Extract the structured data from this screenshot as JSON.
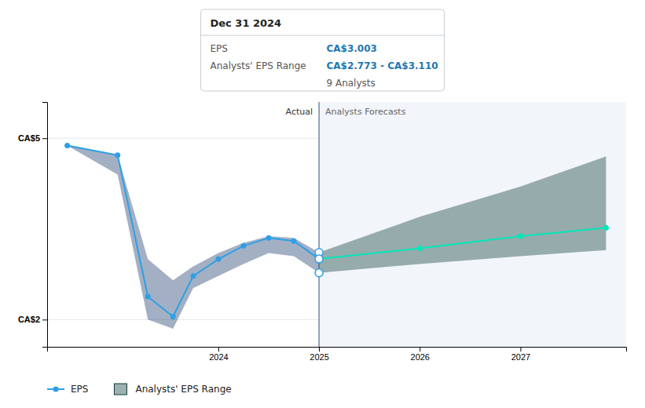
{
  "chart_data": {
    "type": "line",
    "xlim": [
      2022.3,
      2028.05
    ],
    "xticks": [
      2024,
      2025,
      2026,
      2027
    ],
    "ylim": [
      1.55,
      5.6
    ],
    "yticks": [
      {
        "value": 2.0,
        "label": "CA$2"
      },
      {
        "value": 5.0,
        "label": "CA$5"
      }
    ],
    "grid": true,
    "divider": 2025.0,
    "region_labels": [
      "Actual",
      "Analysts Forecasts"
    ],
    "series": [
      {
        "type": "area",
        "color": "#1a3a6a",
        "x": [
          2022.5,
          2023.0,
          2023.3,
          2023.55,
          2023.75,
          2024.0,
          2024.25,
          2024.5,
          2024.75,
          2025.0
        ],
        "upper": [
          4.88,
          4.72,
          3.0,
          2.65,
          2.88,
          3.1,
          3.27,
          3.38,
          3.35,
          3.11
        ],
        "lower": [
          4.88,
          4.4,
          2.0,
          1.85,
          2.52,
          2.72,
          2.92,
          3.1,
          3.05,
          2.773
        ]
      },
      {
        "name": "Analysts' EPS Range",
        "type": "area",
        "color": "#0d3d3a",
        "x": [
          2025.0,
          2026.0,
          2027.0,
          2027.85
        ],
        "upper": [
          3.11,
          3.7,
          4.2,
          4.7
        ],
        "lower": [
          2.773,
          2.92,
          3.05,
          3.15
        ]
      },
      {
        "name": "EPS",
        "type": "line",
        "color": "#2e9fe6",
        "marker": "circle",
        "x": [
          2022.5,
          2023.0,
          2023.3,
          2023.55,
          2023.75,
          2024.0,
          2024.25,
          2024.5,
          2024.75,
          2025.0
        ],
        "values": [
          4.88,
          4.72,
          2.38,
          2.05,
          2.72,
          3.0,
          3.22,
          3.35,
          3.3,
          3.003
        ]
      },
      {
        "type": "line",
        "color": "#00e8b8",
        "marker": "circle",
        "x": [
          2025.0,
          2026.0,
          2027.0,
          2027.85
        ],
        "values": [
          3.003,
          3.18,
          3.38,
          3.52
        ]
      }
    ],
    "highlight": {
      "x": 2025.0,
      "values": [
        3.11,
        3.003,
        2.773
      ],
      "color": "#2e9fe6"
    },
    "tooltip": {
      "title": "Dec 31 2024",
      "rows": [
        {
          "label": "EPS",
          "value": "CA$3.003"
        },
        {
          "label": "Analysts' EPS Range",
          "value": "CA$2.773 - CA$3.110"
        }
      ],
      "note": "9 Analysts"
    }
  }
}
